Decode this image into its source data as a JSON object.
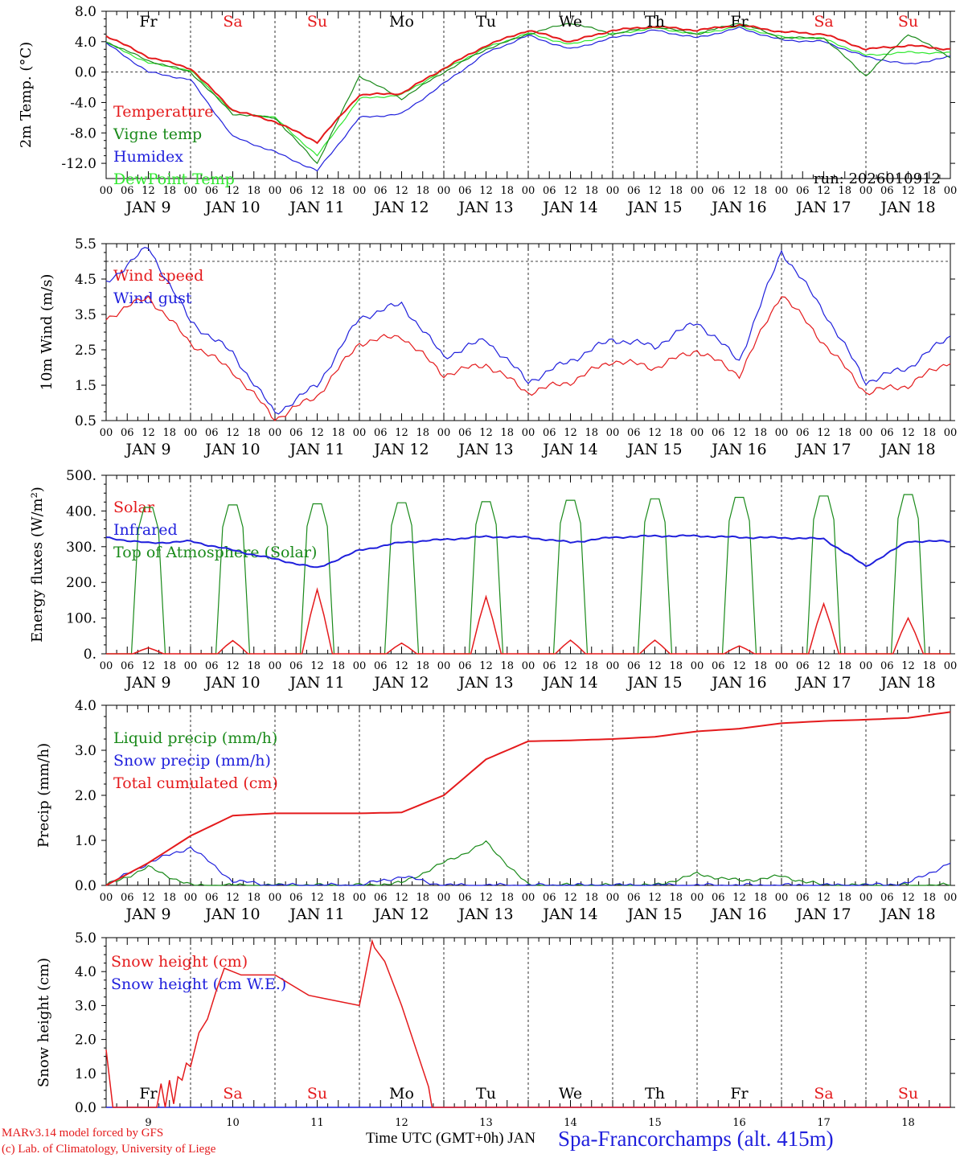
{
  "chart_data": [
    {
      "type": "line",
      "id": "temp",
      "ylabel": "2m Temp. (°C)",
      "ylim": [
        -14,
        8
      ],
      "yticks": [
        "8.0",
        "4.0",
        "0.0",
        "-4.0",
        "-8.0",
        "-12.0"
      ],
      "ytick_values": [
        8,
        4,
        0,
        -4,
        -8,
        -12
      ],
      "dashed_levels": [
        0
      ],
      "run_label": "run: 2026010912",
      "day_names": [
        "Fr",
        "Sa",
        "Su",
        "Mo",
        "Tu",
        "We",
        "Th",
        "Fr",
        "Sa",
        "Su"
      ],
      "weekend_days": [
        1,
        2,
        8,
        9
      ],
      "legend": [
        {
          "label": "Temperature",
          "color": "#e41a1c"
        },
        {
          "label": "Vigne temp",
          "color": "#1a8a1a"
        },
        {
          "label": "Humidex",
          "color": "#1f1fdc"
        },
        {
          "label": "DewPoint Temp",
          "color": "#2ee82e"
        }
      ],
      "x_days": [
        0,
        0.5,
        1,
        1.5,
        2,
        2.5,
        3,
        3.5,
        4,
        4.5,
        5,
        5.5,
        6,
        6.5,
        7,
        7.5,
        8,
        8.5,
        9,
        9.5,
        10
      ],
      "series": [
        {
          "name": "Temperature",
          "color": "#e41a1c",
          "values": [
            4.8,
            2.0,
            0.5,
            -5.0,
            -6.5,
            -9.2,
            -3.0,
            -2.8,
            0.5,
            3.5,
            5.5,
            4.0,
            5.5,
            6.0,
            5.5,
            6.2,
            5.3,
            5.0,
            3.0,
            3.5,
            3.0
          ]
        },
        {
          "name": "Vigne temp",
          "color": "#1a8a1a",
          "values": [
            4.0,
            1.5,
            0.0,
            -5.5,
            -6.0,
            -12.0,
            -0.5,
            -3.5,
            0.0,
            3.0,
            5.0,
            6.5,
            5.0,
            6.0,
            5.0,
            6.5,
            4.5,
            4.5,
            -0.5,
            5.0,
            2.0
          ]
        },
        {
          "name": "Humidex",
          "color": "#1f1fdc",
          "values": [
            3.8,
            0.0,
            -1.0,
            -8.5,
            -10.5,
            -13.0,
            -6.0,
            -5.5,
            -1.5,
            2.5,
            4.8,
            3.0,
            4.5,
            5.5,
            4.5,
            5.8,
            4.2,
            4.0,
            2.0,
            1.0,
            2.0
          ]
        },
        {
          "name": "DewPoint Temp",
          "color": "#2ee82e",
          "values": [
            3.9,
            1.2,
            0.2,
            -5.2,
            -6.0,
            -11.0,
            -3.5,
            -3.0,
            0.3,
            3.2,
            5.1,
            3.6,
            5.0,
            5.8,
            5.0,
            6.0,
            4.6,
            4.4,
            2.2,
            2.6,
            2.5
          ]
        }
      ]
    },
    {
      "type": "line",
      "id": "wind",
      "ylabel": "10m Wind (m/s)",
      "ylim": [
        0.5,
        5.5
      ],
      "yticks": [
        "5.5",
        "4.5",
        "3.5",
        "2.5",
        "1.5",
        "0.5"
      ],
      "ytick_values": [
        5.5,
        4.5,
        3.5,
        2.5,
        1.5,
        0.5
      ],
      "dashed_levels": [
        5
      ],
      "legend": [
        {
          "label": "Wind speed",
          "color": "#e41a1c"
        },
        {
          "label": "Wind gust",
          "color": "#1f1fdc"
        }
      ],
      "x_days": [
        0,
        0.5,
        1,
        1.5,
        2,
        2.5,
        3,
        3.5,
        4,
        4.5,
        5,
        5.5,
        6,
        6.5,
        7,
        7.5,
        8,
        8.5,
        9,
        9.5,
        10
      ],
      "series": [
        {
          "name": "Wind speed",
          "color": "#e41a1c",
          "values": [
            3.4,
            4.0,
            2.7,
            1.9,
            0.55,
            1.2,
            2.7,
            2.9,
            1.8,
            2.1,
            1.3,
            1.6,
            2.2,
            2.0,
            2.5,
            1.8,
            4.1,
            2.7,
            1.3,
            1.5,
            2.2
          ]
        },
        {
          "name": "Wind gust",
          "color": "#1f1fdc",
          "values": [
            4.4,
            5.4,
            3.3,
            2.4,
            0.7,
            1.5,
            3.4,
            3.8,
            2.3,
            2.8,
            1.6,
            2.2,
            2.8,
            2.6,
            3.3,
            2.2,
            5.3,
            3.6,
            1.6,
            2.0,
            2.9
          ]
        }
      ]
    },
    {
      "type": "line",
      "id": "flux",
      "ylabel": "Energy fluxes (W/m²)",
      "ylim": [
        0,
        500
      ],
      "yticks": [
        "500.",
        "400.",
        "300.",
        "200.",
        "100.",
        "0."
      ],
      "ytick_values": [
        500,
        400,
        300,
        200,
        100,
        0
      ],
      "dashed_levels": [],
      "legend": [
        {
          "label": "Solar",
          "color": "#e41a1c"
        },
        {
          "label": "Infrared",
          "color": "#1f1fdc"
        },
        {
          "label": "Top of Atmosphere (Solar)",
          "color": "#1a8a1a"
        }
      ],
      "toa_peaks": [
        410,
        417,
        420,
        423,
        426,
        430,
        434,
        438,
        442,
        446
      ],
      "solar_peaks": [
        17,
        37,
        180,
        30,
        160,
        38,
        38,
        22,
        140,
        100
      ],
      "infrared_x": [
        0,
        0.5,
        1,
        1.5,
        2,
        2.5,
        3,
        3.5,
        4,
        4.5,
        5,
        5.5,
        6,
        6.5,
        7,
        7.5,
        8,
        8.5,
        9,
        9.5,
        10
      ],
      "infrared_values": [
        325,
        310,
        315,
        290,
        265,
        240,
        290,
        312,
        320,
        328,
        326,
        312,
        326,
        330,
        330,
        326,
        325,
        322,
        245,
        315,
        315
      ]
    },
    {
      "type": "line",
      "id": "precip",
      "ylabel": "Precip (mm/h)",
      "ylim": [
        0,
        4
      ],
      "yticks": [
        "4.0",
        "3.0",
        "2.0",
        "1.0",
        "0.0"
      ],
      "ytick_values": [
        4,
        3,
        2,
        1,
        0
      ],
      "dashed_levels": [],
      "legend": [
        {
          "label": "Liquid precip (mm/h)",
          "color": "#1a8a1a"
        },
        {
          "label": "Snow precip (mm/h)",
          "color": "#1f1fdc"
        },
        {
          "label": "Total cumulated (cm)",
          "color": "#e41a1c"
        }
      ],
      "x_days": [
        0,
        0.5,
        1,
        1.5,
        2,
        2.5,
        3,
        3.5,
        4,
        4.5,
        5,
        5.5,
        6,
        6.5,
        7,
        7.5,
        8,
        8.5,
        9,
        9.5,
        10
      ],
      "series": [
        {
          "name": "Liquid precip (mm/h)",
          "color": "#1a8a1a",
          "values": [
            0,
            0.4,
            0,
            0,
            0,
            0,
            0,
            0.05,
            0.5,
            0.95,
            0,
            0,
            0,
            0,
            0.25,
            0.1,
            0.2,
            0,
            0,
            0,
            0
          ]
        },
        {
          "name": "Snow precip (mm/h)",
          "color": "#1f1fdc",
          "values": [
            0,
            0.5,
            0.85,
            0.1,
            0,
            0,
            0,
            0.2,
            0,
            0,
            0,
            0,
            0,
            0,
            0,
            0,
            0,
            0,
            0,
            0.05,
            0.5
          ]
        },
        {
          "name": "Total cumulated (cm)",
          "color": "#e41a1c",
          "values": [
            0,
            0.5,
            1.1,
            1.55,
            1.6,
            1.6,
            1.6,
            1.62,
            2.0,
            2.8,
            3.2,
            3.22,
            3.25,
            3.3,
            3.42,
            3.48,
            3.6,
            3.65,
            3.68,
            3.72,
            3.85
          ]
        }
      ]
    },
    {
      "type": "line",
      "id": "snow",
      "ylabel": "Snow height (cm)",
      "ylim": [
        0,
        5
      ],
      "yticks": [
        "5.0",
        "4.0",
        "3.0",
        "2.0",
        "1.0",
        "0.0"
      ],
      "ytick_values": [
        5,
        4,
        3,
        2,
        1,
        0
      ],
      "dashed_levels": [],
      "legend": [
        {
          "label": "Snow height (cm)",
          "color": "#e41a1c"
        },
        {
          "label": "Snow height (cm W.E.)",
          "color": "#1f1fdc"
        }
      ],
      "x_days": [
        0,
        0.08,
        0.6,
        0.65,
        0.7,
        0.75,
        0.8,
        0.85,
        0.9,
        0.95,
        1.0,
        1.1,
        1.2,
        1.3,
        1.4,
        1.6,
        2.0,
        2.4,
        2.6,
        3.0,
        3.15,
        3.18,
        3.3,
        3.5,
        3.7,
        3.82,
        3.86,
        10
      ],
      "series": [
        {
          "name": "Snow height (cm)",
          "color": "#e41a1c",
          "values": [
            1.7,
            0,
            0,
            0.7,
            0,
            0.8,
            0.1,
            0.9,
            0.8,
            1.3,
            1.2,
            2.2,
            2.6,
            3.4,
            4.1,
            3.9,
            3.9,
            3.3,
            3.2,
            3.0,
            4.9,
            4.7,
            4.3,
            3.0,
            1.5,
            0.6,
            0,
            0
          ]
        },
        {
          "name": "Snow height (cm W.E.)",
          "color": "#1f1fdc",
          "values": [
            0,
            0,
            0,
            0,
            0,
            0,
            0,
            0,
            0,
            0,
            0,
            0,
            0,
            0,
            0,
            0,
            0,
            0,
            0,
            0,
            0,
            0,
            0,
            0,
            0,
            0,
            0,
            0
          ]
        }
      ]
    }
  ],
  "x_axis": {
    "hour_ticks": [
      "00",
      "06",
      "12",
      "18"
    ],
    "date_labels": [
      "JAN  9",
      "JAN 10",
      "JAN 11",
      "JAN 12",
      "JAN 13",
      "JAN 14",
      "JAN 15",
      "JAN 16",
      "JAN 17",
      "JAN 18"
    ],
    "bottom_day_numbers": [
      "9",
      "10",
      "11",
      "12",
      "13",
      "14",
      "15",
      "16",
      "17",
      "18"
    ],
    "bottom_title": "Time UTC (GMT+0h) JAN"
  },
  "footer": {
    "credit_line1": "MARv3.14 model forced by GFS",
    "credit_line2": "(c) Lab. of Climatology, University of Liege",
    "station": "Spa-Francorchamps (alt. 415m)"
  }
}
